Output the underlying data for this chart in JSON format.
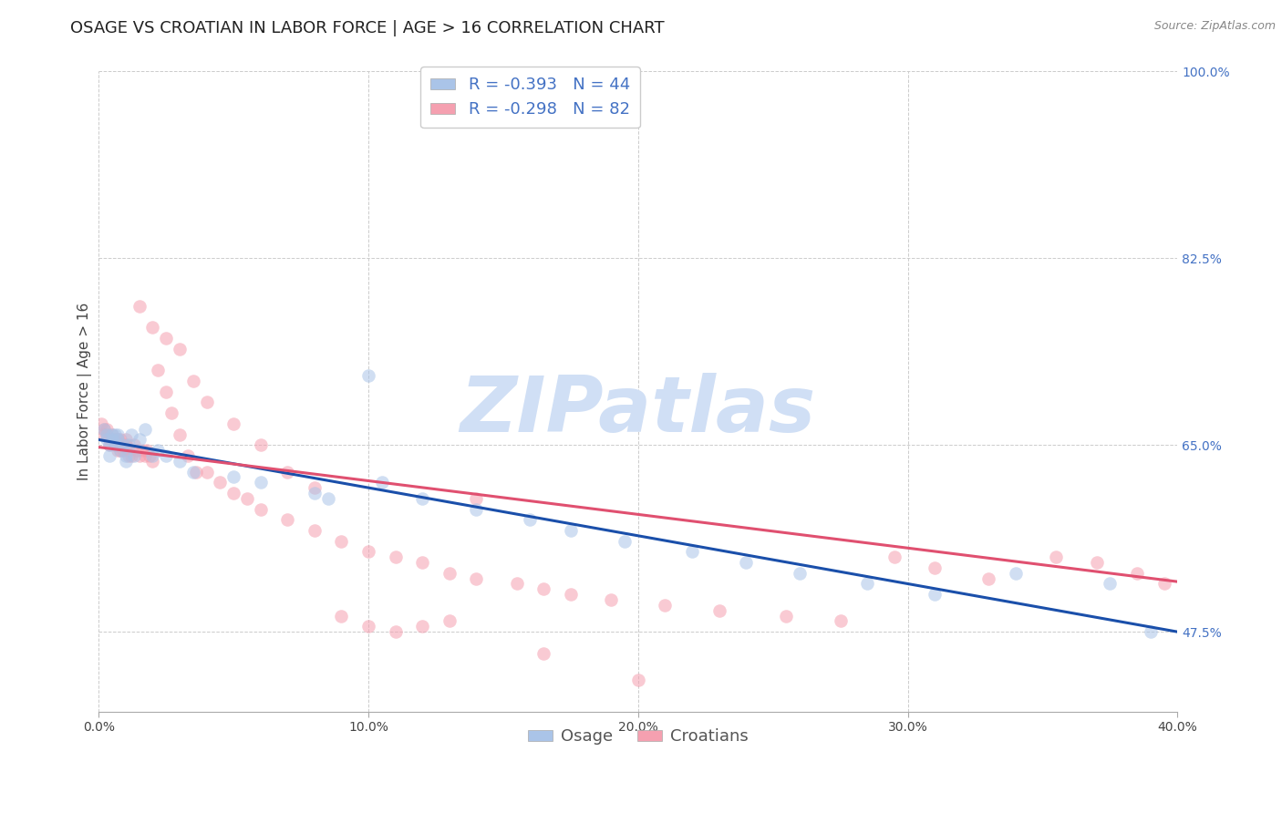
{
  "title": "OSAGE VS CROATIAN IN LABOR FORCE | AGE > 16 CORRELATION CHART",
  "source": "Source: ZipAtlas.com",
  "ylabel": "In Labor Force | Age > 16",
  "xlim": [
    0.0,
    0.4
  ],
  "ylim": [
    0.4,
    1.0
  ],
  "xtick_vals": [
    0.0,
    0.1,
    0.2,
    0.3,
    0.4
  ],
  "xtick_labels": [
    "0.0%",
    "10.0%",
    "20.0%",
    "30.0%",
    "40.0%"
  ],
  "right_ytick_vals": [
    0.475,
    0.65,
    0.825,
    1.0
  ],
  "right_ytick_labels": [
    "47.5%",
    "65.0%",
    "82.5%",
    "100.0%"
  ],
  "background_color": "#ffffff",
  "grid_color": "#cccccc",
  "osage_color": "#aac4e8",
  "croatian_color": "#f5a0b0",
  "osage_line_color": "#1a4faa",
  "croatian_line_color": "#e05070",
  "legend_text_color": "#4472c4",
  "right_axis_color": "#4472c4",
  "R_osage": -0.393,
  "N_osage": 44,
  "R_croatian": -0.298,
  "N_croatian": 82,
  "osage_x": [
    0.002,
    0.003,
    0.003,
    0.004,
    0.004,
    0.005,
    0.005,
    0.006,
    0.006,
    0.007,
    0.007,
    0.008,
    0.009,
    0.01,
    0.01,
    0.011,
    0.012,
    0.013,
    0.015,
    0.017,
    0.02,
    0.022,
    0.025,
    0.03,
    0.035,
    0.05,
    0.06,
    0.08,
    0.085,
    0.1,
    0.105,
    0.12,
    0.14,
    0.16,
    0.175,
    0.195,
    0.22,
    0.24,
    0.26,
    0.285,
    0.31,
    0.34,
    0.375,
    0.39
  ],
  "osage_y": [
    0.665,
    0.655,
    0.66,
    0.64,
    0.65,
    0.66,
    0.655,
    0.66,
    0.65,
    0.66,
    0.655,
    0.645,
    0.65,
    0.635,
    0.64,
    0.65,
    0.66,
    0.64,
    0.655,
    0.665,
    0.64,
    0.645,
    0.64,
    0.635,
    0.625,
    0.62,
    0.615,
    0.605,
    0.6,
    0.715,
    0.615,
    0.6,
    0.59,
    0.58,
    0.57,
    0.56,
    0.55,
    0.54,
    0.53,
    0.52,
    0.51,
    0.53,
    0.52,
    0.475
  ],
  "croatian_x": [
    0.001,
    0.002,
    0.002,
    0.003,
    0.003,
    0.004,
    0.004,
    0.005,
    0.005,
    0.006,
    0.006,
    0.007,
    0.007,
    0.008,
    0.008,
    0.009,
    0.009,
    0.01,
    0.01,
    0.011,
    0.011,
    0.012,
    0.013,
    0.014,
    0.015,
    0.016,
    0.017,
    0.018,
    0.019,
    0.02,
    0.022,
    0.025,
    0.027,
    0.03,
    0.033,
    0.036,
    0.04,
    0.045,
    0.05,
    0.055,
    0.06,
    0.07,
    0.08,
    0.09,
    0.1,
    0.11,
    0.12,
    0.13,
    0.14,
    0.155,
    0.165,
    0.175,
    0.19,
    0.21,
    0.23,
    0.255,
    0.275,
    0.295,
    0.31,
    0.33,
    0.355,
    0.37,
    0.385,
    0.395,
    0.015,
    0.02,
    0.025,
    0.03,
    0.035,
    0.04,
    0.05,
    0.06,
    0.07,
    0.08,
    0.09,
    0.1,
    0.11,
    0.12,
    0.13,
    0.14,
    0.165,
    0.2
  ],
  "croatian_y": [
    0.67,
    0.665,
    0.66,
    0.665,
    0.66,
    0.65,
    0.655,
    0.66,
    0.655,
    0.65,
    0.655,
    0.645,
    0.655,
    0.655,
    0.645,
    0.65,
    0.645,
    0.655,
    0.65,
    0.64,
    0.645,
    0.64,
    0.65,
    0.645,
    0.64,
    0.645,
    0.64,
    0.645,
    0.64,
    0.635,
    0.72,
    0.7,
    0.68,
    0.66,
    0.64,
    0.625,
    0.625,
    0.615,
    0.605,
    0.6,
    0.59,
    0.58,
    0.57,
    0.56,
    0.55,
    0.545,
    0.54,
    0.53,
    0.525,
    0.52,
    0.515,
    0.51,
    0.505,
    0.5,
    0.495,
    0.49,
    0.485,
    0.545,
    0.535,
    0.525,
    0.545,
    0.54,
    0.53,
    0.52,
    0.78,
    0.76,
    0.75,
    0.74,
    0.71,
    0.69,
    0.67,
    0.65,
    0.625,
    0.61,
    0.49,
    0.48,
    0.475,
    0.48,
    0.485,
    0.6,
    0.455,
    0.43
  ],
  "osage_line_x0": 0.0,
  "osage_line_y0": 0.655,
  "osage_line_x1": 0.4,
  "osage_line_y1": 0.475,
  "croatian_line_x0": 0.0,
  "croatian_line_y0": 0.648,
  "croatian_line_x1": 0.4,
  "croatian_line_y1": 0.522,
  "watermark_text": "ZIPatlas",
  "watermark_color": "#d0dff5",
  "legend_fontsize": 13,
  "title_fontsize": 13,
  "source_fontsize": 9,
  "axis_label_fontsize": 11,
  "tick_fontsize": 10,
  "dot_size": 110,
  "dot_alpha": 0.55,
  "line_width": 2.2
}
